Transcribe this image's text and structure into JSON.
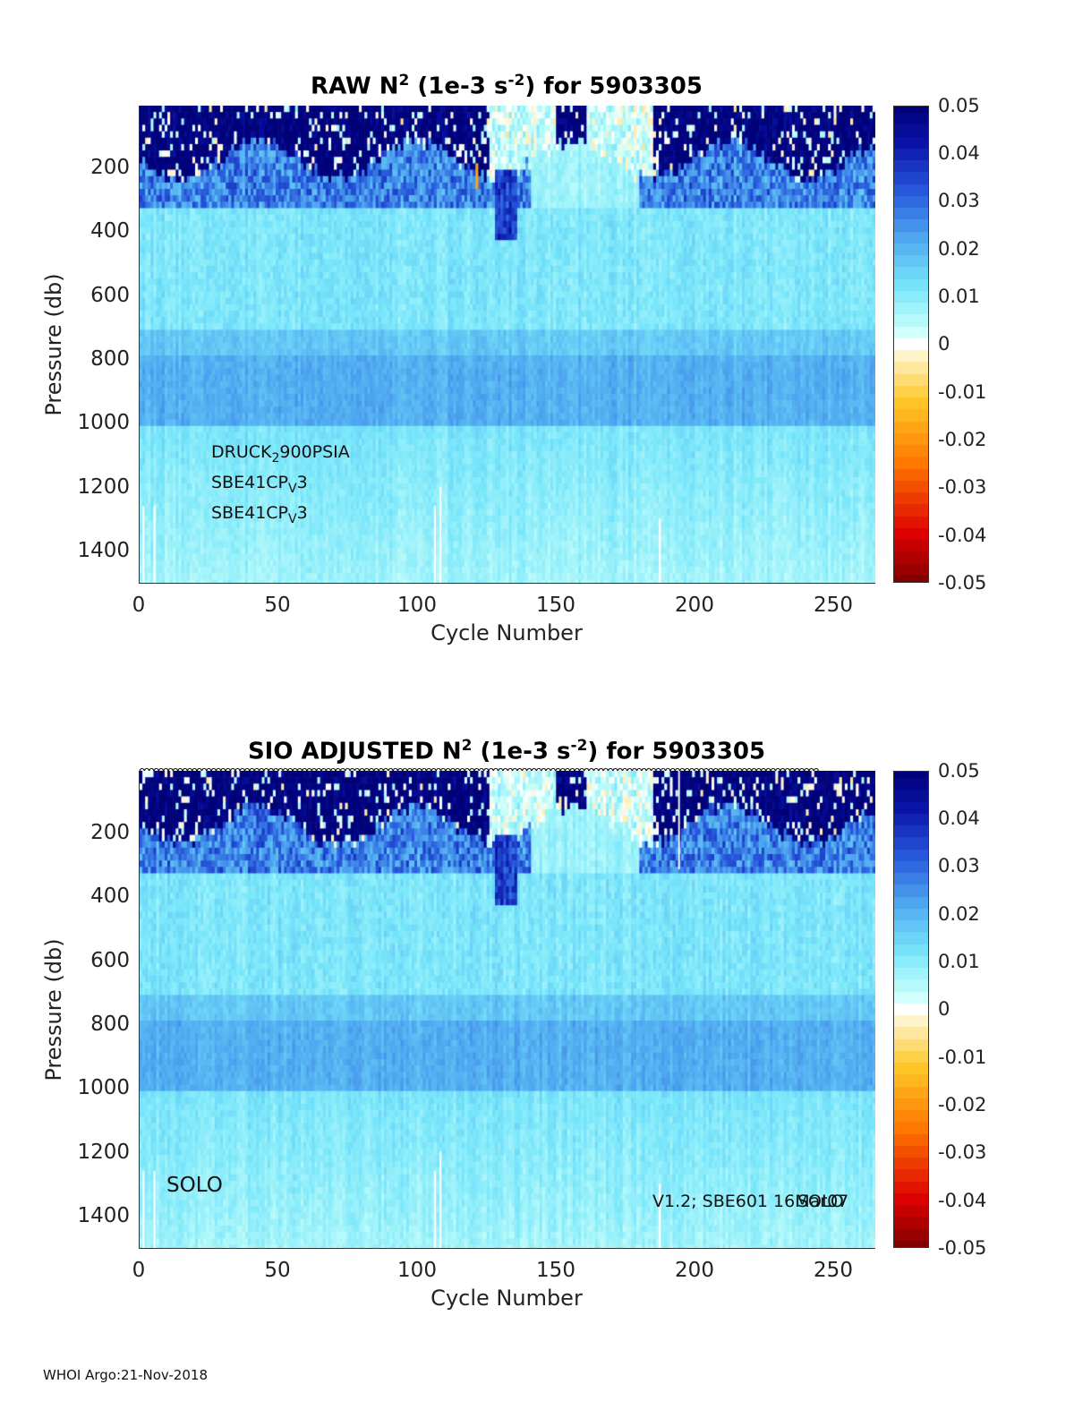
{
  "footer": "WHOI Argo:21-Nov-2018",
  "colorbar": {
    "ticks": [
      "0.05",
      "0.04",
      "0.03",
      "0.02",
      "0.01",
      "0",
      "-0.01",
      "-0.02",
      "-0.03",
      "-0.04",
      "-0.05"
    ]
  },
  "chart_data": [
    {
      "type": "heatmap",
      "title_prefix": "RAW N",
      "title_sup": "2",
      "title_mid": " (1e-3 s",
      "title_sup2": "-2",
      "title_suffix": ") for 5903305",
      "xlabel": "Cycle Number",
      "ylabel": "Pressure (db)",
      "xlim": [
        0,
        265
      ],
      "ylim": [
        1500,
        10
      ],
      "xticks": [
        "0",
        "50",
        "100",
        "150",
        "200",
        "250"
      ],
      "yticks": [
        "200",
        "400",
        "600",
        "800",
        "1000",
        "1200",
        "1400"
      ],
      "clim": [
        -0.05,
        0.05
      ],
      "colormap": "jet-with-white-at-zero",
      "annotations": {
        "line1_main": "DRUCK",
        "line1_sub": "2",
        "line1_rest": "900PSIA",
        "line2_main": "SBE41CP",
        "line2_sub": "V",
        "line2_rest": "3",
        "line3_main": "SBE41CP",
        "line3_sub": "V",
        "line3_rest": "3"
      }
    },
    {
      "type": "heatmap",
      "title_prefix": "SIO  ADJUSTED N",
      "title_sup": "2",
      "title_mid": " (1e-3 s",
      "title_sup2": "-2",
      "title_suffix": ") for 5903305",
      "xlabel": "Cycle Number",
      "ylabel": "Pressure (db)",
      "xlim": [
        0,
        265
      ],
      "ylim": [
        1500,
        10
      ],
      "xticks": [
        "0",
        "50",
        "100",
        "150",
        "200",
        "250"
      ],
      "yticks": [
        "200",
        "400",
        "600",
        "800",
        "1000",
        "1200",
        "1400"
      ],
      "clim": [
        -0.05,
        0.05
      ],
      "colormap": "jet-with-white-at-zero",
      "annotations": {
        "float_type": "SOLO",
        "firmware_left": "V1.2; SBE601 16Mar07",
        "firmware_right": "SOLO"
      }
    }
  ]
}
